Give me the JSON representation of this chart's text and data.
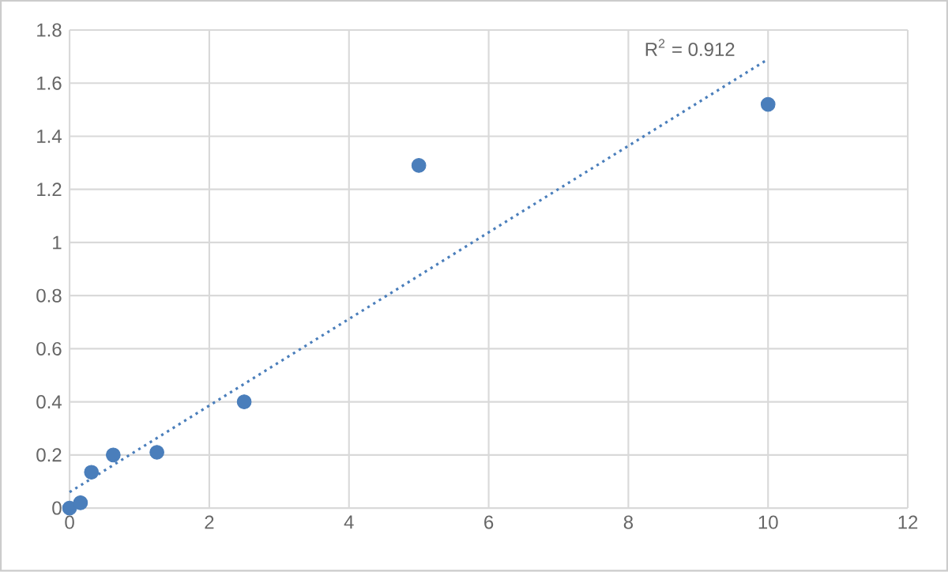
{
  "chart_data": {
    "type": "scatter",
    "xlim": [
      0,
      12
    ],
    "ylim": [
      0,
      1.8
    ],
    "xticks": [
      0,
      2,
      4,
      6,
      8,
      10,
      12
    ],
    "yticks": [
      0,
      0.2,
      0.4,
      0.6,
      0.8,
      1,
      1.2,
      1.4,
      1.6,
      1.8
    ],
    "grid": true,
    "marker": "circle",
    "series": [
      {
        "color": "#4a7ebb",
        "x": [
          0,
          0.156,
          0.3125,
          0.625,
          1.25,
          2.5,
          5,
          10
        ],
        "values": [
          0,
          0.02,
          0.135,
          0.2,
          0.21,
          0.4,
          1.29,
          1.52
        ]
      },
      {
        "type": "line",
        "color": "#4a7ebb",
        "line_style": "dotted",
        "marker": "none",
        "x": [
          0,
          10
        ],
        "values": [
          0.06,
          1.69
        ]
      }
    ],
    "annotations": [
      "R$^{2}$ = 0.912"
    ]
  }
}
